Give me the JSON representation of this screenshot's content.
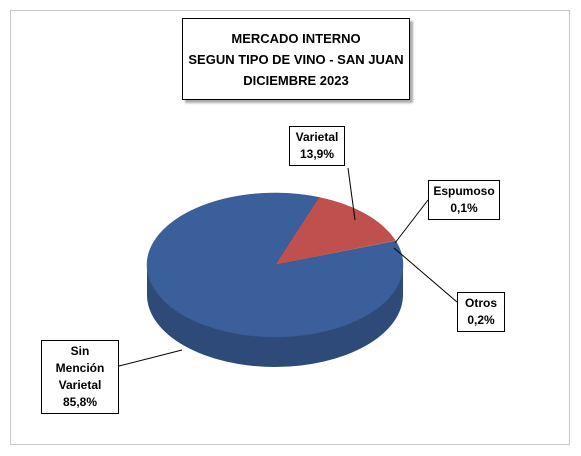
{
  "chart_data": {
    "type": "pie",
    "title": [
      "MERCADO INTERNO",
      "SEGUN TIPO DE VINO - SAN JUAN",
      "DICIEMBRE 2023"
    ],
    "categories": [
      "Varietal",
      "Espumoso",
      "Otros",
      "Sin Mención Varietal"
    ],
    "values": [
      13.9,
      0.1,
      0.2,
      85.8
    ],
    "value_labels": [
      "13,9%",
      "0,1%",
      "0,2%",
      "85,8%"
    ],
    "colors": [
      "#c0504d",
      "#9bbb59",
      "#8064a2",
      "#3a5f9a"
    ]
  }
}
